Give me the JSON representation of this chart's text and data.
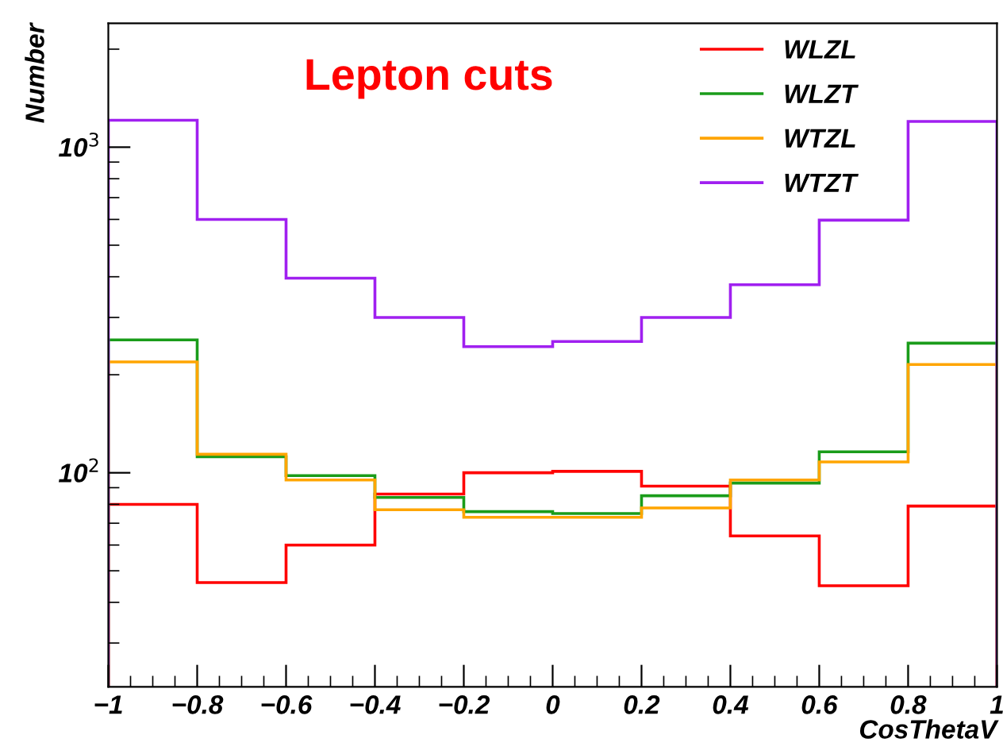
{
  "chart_data": {
    "type": "histogram",
    "xlabel": "CosThetaV",
    "ylabel": "Number",
    "annotations": [
      "Lepton cuts"
    ],
    "bins": [
      -1,
      -0.8,
      -0.6,
      -0.4,
      -0.2,
      0,
      0.2,
      0.4,
      0.6,
      0.8,
      1
    ],
    "series": [
      {
        "name": "WLZL",
        "color": "#ff0000",
        "values": [
          80,
          46,
          60,
          86,
          100,
          101,
          91,
          64,
          45,
          79
        ]
      },
      {
        "name": "WLZT",
        "color": "#1a9c1a",
        "values": [
          256,
          112,
          98,
          84,
          76,
          75,
          85,
          93,
          116,
          250
        ]
      },
      {
        "name": "WTZL",
        "color": "#ffa500",
        "values": [
          219,
          114,
          95,
          77,
          73,
          73,
          78,
          95,
          108,
          215
        ]
      },
      {
        "name": "WTZT",
        "color": "#a020f0",
        "values": [
          1210,
          600,
          396,
          300,
          244,
          253,
          300,
          378,
          597,
          1200
        ]
      }
    ],
    "xlim": [
      -1,
      1
    ],
    "xticks": [
      {
        "value": -1,
        "label": "−1"
      },
      {
        "value": -0.8,
        "label": "−0.8"
      },
      {
        "value": -0.6,
        "label": "−0.6"
      },
      {
        "value": -0.4,
        "label": "−0.4"
      },
      {
        "value": -0.2,
        "label": "−0.2"
      },
      0,
      0.2,
      0.4,
      0.6,
      0.8,
      1
    ],
    "ylim": [
      22,
      2400
    ],
    "yticks": [
      {
        "value": 100,
        "label": "10$^{2}$"
      },
      {
        "value": 1000,
        "label": "10$^{3}$"
      }
    ],
    "log": true,
    "grid": false,
    "legend": "top right"
  }
}
